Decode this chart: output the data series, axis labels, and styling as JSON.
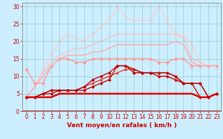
{
  "background_color": "#cceeff",
  "grid_color": "#99cccc",
  "xlabel": "Vent moyen/en rafales ( km/h )",
  "x_ticks": [
    0,
    1,
    2,
    3,
    4,
    5,
    6,
    7,
    8,
    9,
    10,
    11,
    12,
    13,
    14,
    15,
    16,
    17,
    18,
    19,
    20,
    21,
    22,
    23
  ],
  "ylim": [
    0,
    31
  ],
  "y_ticks": [
    0,
    5,
    10,
    15,
    20,
    25,
    30
  ],
  "lines": [
    {
      "x": [
        0,
        1,
        2,
        3,
        4,
        5,
        6,
        7,
        8,
        9,
        10,
        11,
        12,
        13,
        14,
        15,
        16,
        17,
        18,
        19,
        20,
        21,
        22,
        23
      ],
      "y": [
        4,
        4,
        4,
        4,
        5,
        5,
        5,
        5,
        5,
        5,
        5,
        5,
        5,
        5,
        5,
        5,
        5,
        5,
        5,
        5,
        5,
        4,
        4,
        5
      ],
      "color": "#dd0000",
      "linewidth": 1.8,
      "marker": null,
      "zorder": 5
    },
    {
      "x": [
        0,
        1,
        2,
        3,
        4,
        5,
        6,
        7,
        8,
        9,
        10,
        11,
        12,
        13,
        14,
        15,
        16,
        17,
        18,
        19,
        20,
        21,
        22,
        23
      ],
      "y": [
        4,
        4,
        5,
        5,
        6,
        6,
        6,
        6,
        7,
        8,
        9,
        13,
        13,
        12,
        11,
        11,
        10,
        10,
        9,
        8,
        8,
        4,
        4,
        5
      ],
      "color": "#cc0000",
      "linewidth": 1.0,
      "marker": "D",
      "markersize": 2.0,
      "zorder": 4
    },
    {
      "x": [
        0,
        1,
        2,
        3,
        4,
        5,
        6,
        7,
        8,
        9,
        10,
        11,
        12,
        13,
        14,
        15,
        16,
        17,
        18,
        19,
        20,
        21,
        22,
        23
      ],
      "y": [
        4,
        4,
        5,
        6,
        6,
        6,
        6,
        7,
        9,
        10,
        11,
        13,
        13,
        11,
        11,
        11,
        11,
        11,
        10,
        8,
        8,
        8,
        4,
        5
      ],
      "color": "#bb0000",
      "linewidth": 1.0,
      "marker": "P",
      "markersize": 2.5,
      "zorder": 4
    },
    {
      "x": [
        0,
        1,
        2,
        3,
        4,
        5,
        6,
        7,
        8,
        9,
        10,
        11,
        12,
        13,
        14,
        15,
        16,
        17,
        18,
        19,
        20,
        21,
        22,
        23
      ],
      "y": [
        4,
        4,
        5,
        6,
        6,
        6,
        6,
        7,
        8,
        9,
        10,
        11,
        12,
        12,
        11,
        11,
        11,
        11,
        10,
        8,
        8,
        8,
        4,
        5
      ],
      "color": "#ee3333",
      "linewidth": 1.0,
      "marker": "o",
      "markersize": 2.0,
      "zorder": 3
    },
    {
      "x": [
        0,
        1,
        2,
        3,
        4,
        5,
        6,
        7,
        8,
        9,
        10,
        11,
        12,
        13,
        14,
        15,
        16,
        17,
        18,
        19,
        20,
        21,
        22,
        23
      ],
      "y": [
        12,
        8,
        8,
        13,
        15,
        15,
        14,
        14,
        15,
        15,
        15,
        15,
        15,
        15,
        15,
        15,
        14,
        14,
        15,
        15,
        13,
        13,
        13,
        13
      ],
      "color": "#ff9999",
      "linewidth": 1.0,
      "marker": "o",
      "markersize": 2.5,
      "zorder": 2
    },
    {
      "x": [
        0,
        1,
        2,
        3,
        4,
        5,
        6,
        7,
        8,
        9,
        10,
        11,
        12,
        13,
        14,
        15,
        16,
        17,
        18,
        19,
        20,
        21,
        22,
        23
      ],
      "y": [
        4,
        7,
        10,
        13,
        15,
        16,
        16,
        16,
        17,
        17,
        18,
        19,
        19,
        19,
        19,
        19,
        19,
        19,
        20,
        19,
        14,
        13,
        13,
        13
      ],
      "color": "#ffaaaa",
      "linewidth": 1.0,
      "marker": null,
      "zorder": 2
    },
    {
      "x": [
        0,
        1,
        2,
        3,
        4,
        5,
        6,
        7,
        8,
        9,
        10,
        11,
        12,
        13,
        14,
        15,
        16,
        17,
        18,
        19,
        20,
        21,
        22,
        23
      ],
      "y": [
        4,
        7,
        11,
        14,
        16,
        17,
        18,
        18,
        19,
        20,
        21,
        22,
        22,
        22,
        22,
        22,
        22,
        22,
        22,
        21,
        15,
        14,
        13,
        13
      ],
      "color": "#ffbbbb",
      "linewidth": 0.9,
      "marker": null,
      "zorder": 1
    },
    {
      "x": [
        0,
        1,
        2,
        3,
        4,
        5,
        6,
        7,
        8,
        9,
        10,
        11,
        12,
        13,
        14,
        15,
        16,
        17,
        18,
        19,
        20,
        21,
        22,
        23
      ],
      "y": [
        4,
        7,
        12,
        16,
        20,
        22,
        21,
        20,
        22,
        24,
        26,
        30,
        27,
        26,
        26,
        26,
        30,
        26,
        22,
        22,
        19,
        14,
        13,
        13
      ],
      "color": "#ffcccc",
      "linewidth": 0.9,
      "marker": "o",
      "markersize": 2.0,
      "zorder": 1
    }
  ],
  "xlabel_color": "#cc0000",
  "xlabel_fontsize": 6.5,
  "tick_fontsize": 5.5,
  "tick_color": "#cc0000"
}
